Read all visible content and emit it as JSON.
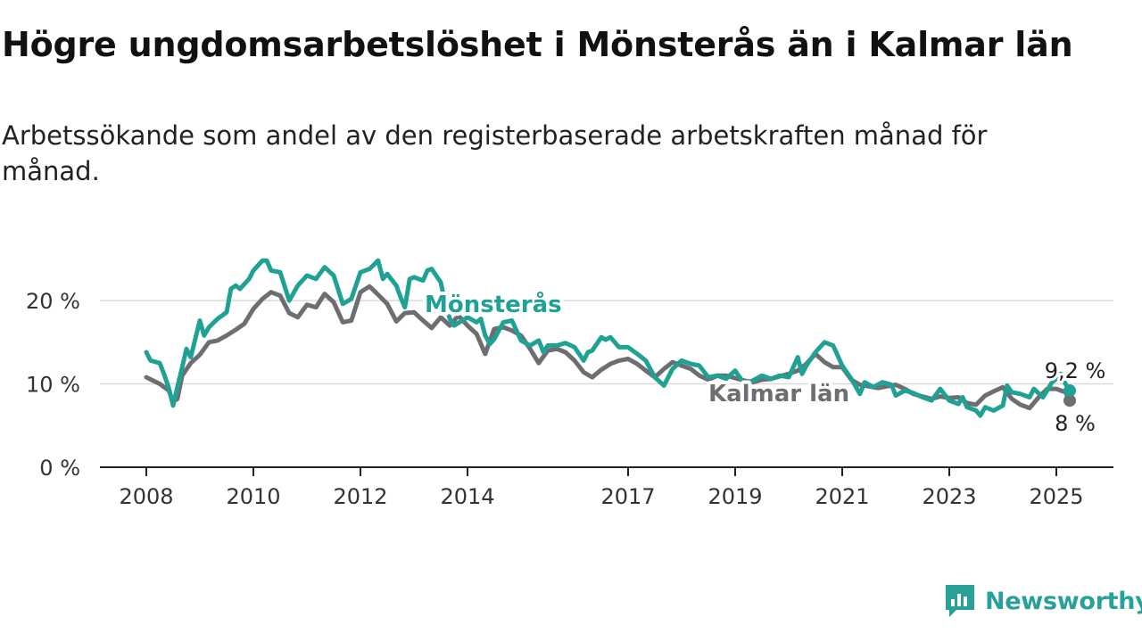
{
  "header": {
    "title": "Högre ungdomsarbetslöshet i Mönsterås än i Kalmar län",
    "subtitle": "Arbetssökande som andel av den registerbaserade arbetskraften månad för månad."
  },
  "brand": {
    "name": "Newsworthy",
    "icon": "newsworthy-logo-icon",
    "color": "#2aa198"
  },
  "chart_data": {
    "type": "line",
    "ylim": [
      0,
      26
    ],
    "xlim": [
      2008.0,
      2025.5
    ],
    "y_ticks": [
      {
        "value": 0,
        "label": "0 %"
      },
      {
        "value": 10,
        "label": "10 %"
      },
      {
        "value": 20,
        "label": "20 %"
      }
    ],
    "x_ticks": [
      {
        "value": 2008,
        "label": "2008"
      },
      {
        "value": 2010,
        "label": "2010"
      },
      {
        "value": 2012,
        "label": "2012"
      },
      {
        "value": 2014,
        "label": "2014"
      },
      {
        "value": 2017,
        "label": "2017"
      },
      {
        "value": 2019,
        "label": "2019"
      },
      {
        "value": 2021,
        "label": "2021"
      },
      {
        "value": 2023,
        "label": "2023"
      },
      {
        "value": 2025,
        "label": "2025"
      }
    ],
    "grid": true,
    "series": [
      {
        "name": "Kalmar län",
        "color": "#6e6e72",
        "end_label": "8 %",
        "points": [
          [
            2008.0,
            10.8
          ],
          [
            2008.25,
            10.0
          ],
          [
            2008.42,
            9.2
          ],
          [
            2008.5,
            7.9
          ],
          [
            2008.58,
            8.2
          ],
          [
            2008.67,
            11.0
          ],
          [
            2008.83,
            12.5
          ],
          [
            2009.0,
            13.5
          ],
          [
            2009.17,
            15.0
          ],
          [
            2009.33,
            15.2
          ],
          [
            2009.5,
            15.8
          ],
          [
            2009.67,
            16.5
          ],
          [
            2009.83,
            17.2
          ],
          [
            2010.0,
            19.0
          ],
          [
            2010.17,
            20.2
          ],
          [
            2010.33,
            21.0
          ],
          [
            2010.5,
            20.6
          ],
          [
            2010.67,
            18.5
          ],
          [
            2010.83,
            18.0
          ],
          [
            2011.0,
            19.5
          ],
          [
            2011.17,
            19.2
          ],
          [
            2011.33,
            20.8
          ],
          [
            2011.5,
            19.8
          ],
          [
            2011.67,
            17.4
          ],
          [
            2011.83,
            17.6
          ],
          [
            2012.0,
            21.0
          ],
          [
            2012.17,
            21.7
          ],
          [
            2012.33,
            20.7
          ],
          [
            2012.5,
            19.6
          ],
          [
            2012.67,
            17.5
          ],
          [
            2012.83,
            18.5
          ],
          [
            2013.0,
            18.6
          ],
          [
            2013.17,
            17.6
          ],
          [
            2013.33,
            16.7
          ],
          [
            2013.5,
            18.0
          ],
          [
            2013.67,
            17.0
          ],
          [
            2013.83,
            18.2
          ],
          [
            2014.0,
            17.0
          ],
          [
            2014.17,
            16.0
          ],
          [
            2014.33,
            13.6
          ],
          [
            2014.5,
            16.6
          ],
          [
            2014.67,
            16.8
          ],
          [
            2014.83,
            16.4
          ],
          [
            2015.0,
            15.8
          ],
          [
            2015.17,
            14.2
          ],
          [
            2015.33,
            12.5
          ],
          [
            2015.5,
            14.0
          ],
          [
            2015.67,
            14.2
          ],
          [
            2015.83,
            13.8
          ],
          [
            2016.0,
            12.8
          ],
          [
            2016.17,
            11.4
          ],
          [
            2016.33,
            10.8
          ],
          [
            2016.5,
            11.7
          ],
          [
            2016.67,
            12.4
          ],
          [
            2016.83,
            12.8
          ],
          [
            2017.0,
            13.0
          ],
          [
            2017.17,
            12.4
          ],
          [
            2017.33,
            11.6
          ],
          [
            2017.5,
            10.8
          ],
          [
            2017.67,
            11.8
          ],
          [
            2017.83,
            12.6
          ],
          [
            2018.0,
            12.2
          ],
          [
            2018.17,
            11.8
          ],
          [
            2018.33,
            11.0
          ],
          [
            2018.5,
            10.5
          ],
          [
            2018.67,
            11.0
          ],
          [
            2018.83,
            11.0
          ],
          [
            2019.0,
            10.7
          ],
          [
            2019.17,
            10.4
          ],
          [
            2019.33,
            10.2
          ],
          [
            2019.5,
            10.5
          ],
          [
            2019.67,
            10.6
          ],
          [
            2019.83,
            10.9
          ],
          [
            2020.0,
            11.2
          ],
          [
            2020.17,
            11.6
          ],
          [
            2020.33,
            12.4
          ],
          [
            2020.5,
            13.6
          ],
          [
            2020.67,
            12.6
          ],
          [
            2020.83,
            12.0
          ],
          [
            2021.0,
            12.0
          ],
          [
            2021.17,
            10.5
          ],
          [
            2021.33,
            9.9
          ],
          [
            2021.5,
            9.7
          ],
          [
            2021.67,
            9.5
          ],
          [
            2021.83,
            9.7
          ],
          [
            2022.0,
            9.9
          ],
          [
            2022.17,
            9.4
          ],
          [
            2022.33,
            8.8
          ],
          [
            2022.5,
            8.5
          ],
          [
            2022.67,
            8.2
          ],
          [
            2022.83,
            8.5
          ],
          [
            2023.0,
            8.3
          ],
          [
            2023.17,
            8.4
          ],
          [
            2023.33,
            7.7
          ],
          [
            2023.5,
            7.5
          ],
          [
            2023.67,
            8.6
          ],
          [
            2023.83,
            9.1
          ],
          [
            2024.0,
            9.6
          ],
          [
            2024.17,
            8.2
          ],
          [
            2024.33,
            7.5
          ],
          [
            2024.5,
            7.1
          ],
          [
            2024.67,
            8.4
          ],
          [
            2024.83,
            9.4
          ],
          [
            2025.0,
            9.4
          ],
          [
            2025.17,
            9.0
          ],
          [
            2025.25,
            8.0
          ]
        ]
      },
      {
        "name": "Mönsterås",
        "color": "#1fa294",
        "end_label": "9,2 %",
        "points": [
          [
            2008.0,
            13.8
          ],
          [
            2008.08,
            12.8
          ],
          [
            2008.25,
            12.5
          ],
          [
            2008.33,
            11.2
          ],
          [
            2008.42,
            9.5
          ],
          [
            2008.5,
            7.4
          ],
          [
            2008.58,
            9.6
          ],
          [
            2008.67,
            12.0
          ],
          [
            2008.75,
            14.2
          ],
          [
            2008.83,
            13.2
          ],
          [
            2009.0,
            17.6
          ],
          [
            2009.08,
            15.8
          ],
          [
            2009.17,
            16.8
          ],
          [
            2009.33,
            17.8
          ],
          [
            2009.5,
            18.6
          ],
          [
            2009.58,
            21.4
          ],
          [
            2009.67,
            21.8
          ],
          [
            2009.75,
            21.4
          ],
          [
            2009.92,
            22.6
          ],
          [
            2010.0,
            23.6
          ],
          [
            2010.17,
            24.8
          ],
          [
            2010.25,
            24.8
          ],
          [
            2010.33,
            23.6
          ],
          [
            2010.5,
            23.4
          ],
          [
            2010.67,
            20.0
          ],
          [
            2010.83,
            21.8
          ],
          [
            2011.0,
            23.0
          ],
          [
            2011.17,
            22.6
          ],
          [
            2011.33,
            24.0
          ],
          [
            2011.5,
            23.0
          ],
          [
            2011.67,
            19.6
          ],
          [
            2011.83,
            20.2
          ],
          [
            2012.0,
            23.4
          ],
          [
            2012.17,
            23.8
          ],
          [
            2012.33,
            24.8
          ],
          [
            2012.42,
            22.6
          ],
          [
            2012.5,
            23.2
          ],
          [
            2012.67,
            21.8
          ],
          [
            2012.75,
            20.4
          ],
          [
            2012.83,
            19.2
          ],
          [
            2012.92,
            22.6
          ],
          [
            2013.0,
            22.8
          ],
          [
            2013.17,
            22.4
          ],
          [
            2013.25,
            23.6
          ],
          [
            2013.33,
            23.8
          ],
          [
            2013.5,
            22.2
          ],
          [
            2013.58,
            19.8
          ],
          [
            2013.67,
            17.8
          ],
          [
            2013.75,
            17.0
          ],
          [
            2014.0,
            18.0
          ],
          [
            2014.17,
            17.4
          ],
          [
            2014.25,
            17.8
          ],
          [
            2014.33,
            15.8
          ],
          [
            2014.42,
            14.8
          ],
          [
            2014.5,
            15.4
          ],
          [
            2014.67,
            17.4
          ],
          [
            2014.83,
            17.6
          ],
          [
            2015.0,
            15.2
          ],
          [
            2015.17,
            14.6
          ],
          [
            2015.33,
            15.2
          ],
          [
            2015.42,
            13.8
          ],
          [
            2015.5,
            14.6
          ],
          [
            2015.67,
            14.6
          ],
          [
            2015.83,
            14.9
          ],
          [
            2016.0,
            14.4
          ],
          [
            2016.17,
            12.8
          ],
          [
            2016.25,
            13.8
          ],
          [
            2016.33,
            14.0
          ],
          [
            2016.5,
            15.6
          ],
          [
            2016.58,
            15.3
          ],
          [
            2016.67,
            15.6
          ],
          [
            2016.83,
            14.4
          ],
          [
            2017.0,
            14.4
          ],
          [
            2017.17,
            13.6
          ],
          [
            2017.33,
            12.8
          ],
          [
            2017.5,
            10.8
          ],
          [
            2017.67,
            9.8
          ],
          [
            2017.83,
            11.8
          ],
          [
            2018.0,
            12.8
          ],
          [
            2018.17,
            12.4
          ],
          [
            2018.33,
            12.2
          ],
          [
            2018.5,
            10.8
          ],
          [
            2018.67,
            11.0
          ],
          [
            2018.83,
            10.6
          ],
          [
            2019.0,
            11.6
          ],
          [
            2019.17,
            10.0
          ],
          [
            2019.33,
            10.4
          ],
          [
            2019.5,
            11.0
          ],
          [
            2019.67,
            10.6
          ],
          [
            2019.83,
            11.0
          ],
          [
            2020.0,
            10.8
          ],
          [
            2020.17,
            13.2
          ],
          [
            2020.25,
            11.2
          ],
          [
            2020.33,
            12.2
          ],
          [
            2020.5,
            13.8
          ],
          [
            2020.67,
            15.0
          ],
          [
            2020.83,
            14.6
          ],
          [
            2021.0,
            12.2
          ],
          [
            2021.17,
            10.6
          ],
          [
            2021.33,
            8.8
          ],
          [
            2021.42,
            10.2
          ],
          [
            2021.58,
            9.6
          ],
          [
            2021.75,
            10.2
          ],
          [
            2021.92,
            9.9
          ],
          [
            2022.0,
            8.6
          ],
          [
            2022.17,
            9.2
          ],
          [
            2022.33,
            8.9
          ],
          [
            2022.5,
            8.4
          ],
          [
            2022.67,
            8.0
          ],
          [
            2022.83,
            9.4
          ],
          [
            2023.0,
            8.0
          ],
          [
            2023.17,
            7.6
          ],
          [
            2023.25,
            8.4
          ],
          [
            2023.33,
            7.2
          ],
          [
            2023.5,
            6.8
          ],
          [
            2023.58,
            6.2
          ],
          [
            2023.67,
            7.2
          ],
          [
            2023.83,
            6.8
          ],
          [
            2024.0,
            7.4
          ],
          [
            2024.08,
            9.8
          ],
          [
            2024.17,
            9.0
          ],
          [
            2024.33,
            8.8
          ],
          [
            2024.5,
            8.4
          ],
          [
            2024.58,
            9.4
          ],
          [
            2024.75,
            8.4
          ],
          [
            2024.92,
            10.2
          ],
          [
            2025.0,
            10.6
          ],
          [
            2025.08,
            11.2
          ],
          [
            2025.17,
            10.0
          ],
          [
            2025.25,
            9.2
          ]
        ]
      }
    ],
    "inline_labels": [
      {
        "series": "Mönsterås",
        "text": "Mönsterås",
        "x": 2013.2,
        "y": 19.7,
        "color": "#1fa294"
      },
      {
        "series": "Kalmar län",
        "text": "Kalmar län",
        "x": 2018.5,
        "y": 9.0,
        "color": "#6e6e72"
      }
    ]
  }
}
